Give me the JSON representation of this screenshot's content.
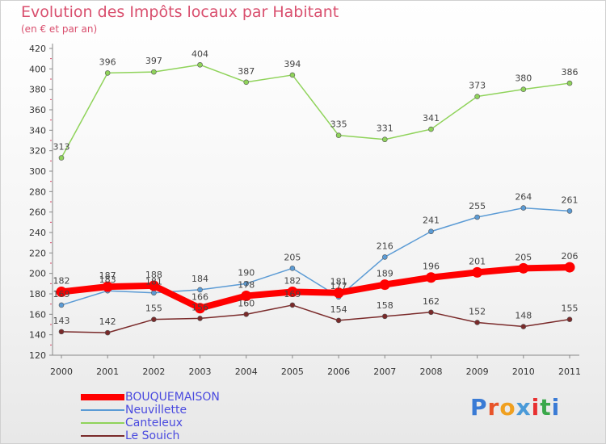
{
  "title": "Evolution des Impôts locaux par Habitant",
  "subtitle": "(en € et par an)",
  "logo": {
    "text": "Proxiti",
    "letter_colors": [
      "#3a7bd5",
      "#e8542a",
      "#f0a020",
      "#4a9ad8",
      "#e83030",
      "#3aa84a",
      "#3a7bd5"
    ]
  },
  "chart_data": {
    "type": "line",
    "x": [
      "2000",
      "2001",
      "2002",
      "2003",
      "2004",
      "2005",
      "2006",
      "2007",
      "2008",
      "2009",
      "2010",
      "2011"
    ],
    "yticks": [
      "120",
      "140",
      "160",
      "180",
      "200",
      "220",
      "240",
      "260",
      "280",
      "300",
      "320",
      "340",
      "360",
      "380",
      "400",
      "420"
    ],
    "ylim": [
      120,
      420
    ],
    "grid": false,
    "legend_position": "bottom-left",
    "series": [
      {
        "name": "BOUQUEMAISON",
        "color": "#ff0000",
        "thick": true,
        "values": [
          182,
          187,
          188,
          166,
          178,
          182,
          181,
          189,
          196,
          201,
          205,
          206
        ],
        "labels": [
          "182",
          "187",
          "188",
          "166",
          "178",
          "182",
          "181",
          "189",
          "196",
          "201",
          "205",
          "206"
        ]
      },
      {
        "name": "Neuvillette",
        "color": "#5b9bd5",
        "thick": false,
        "values": [
          169,
          183,
          181,
          184,
          190,
          205,
          177,
          216,
          241,
          255,
          264,
          261
        ],
        "labels": [
          "169",
          "183",
          "181",
          "184",
          "190",
          "205",
          "177",
          "216",
          "241",
          "255",
          "264",
          "261"
        ]
      },
      {
        "name": "Canteleux",
        "color": "#8fd35a",
        "thick": false,
        "values": [
          313,
          396,
          397,
          404,
          387,
          394,
          335,
          331,
          341,
          373,
          380,
          386
        ],
        "labels": [
          "313",
          "396",
          "397",
          "404",
          "387",
          "394",
          "335",
          "331",
          "341",
          "373",
          "380",
          "386"
        ]
      },
      {
        "name": "Le Souich",
        "color": "#7a2a2a",
        "thick": false,
        "values": [
          143,
          142,
          155,
          156,
          160,
          169,
          154,
          158,
          162,
          152,
          148,
          155
        ],
        "labels": [
          "143",
          "142",
          "155",
          "156",
          "160",
          "169",
          "154",
          "158",
          "162",
          "152",
          "148",
          "155"
        ]
      }
    ]
  }
}
